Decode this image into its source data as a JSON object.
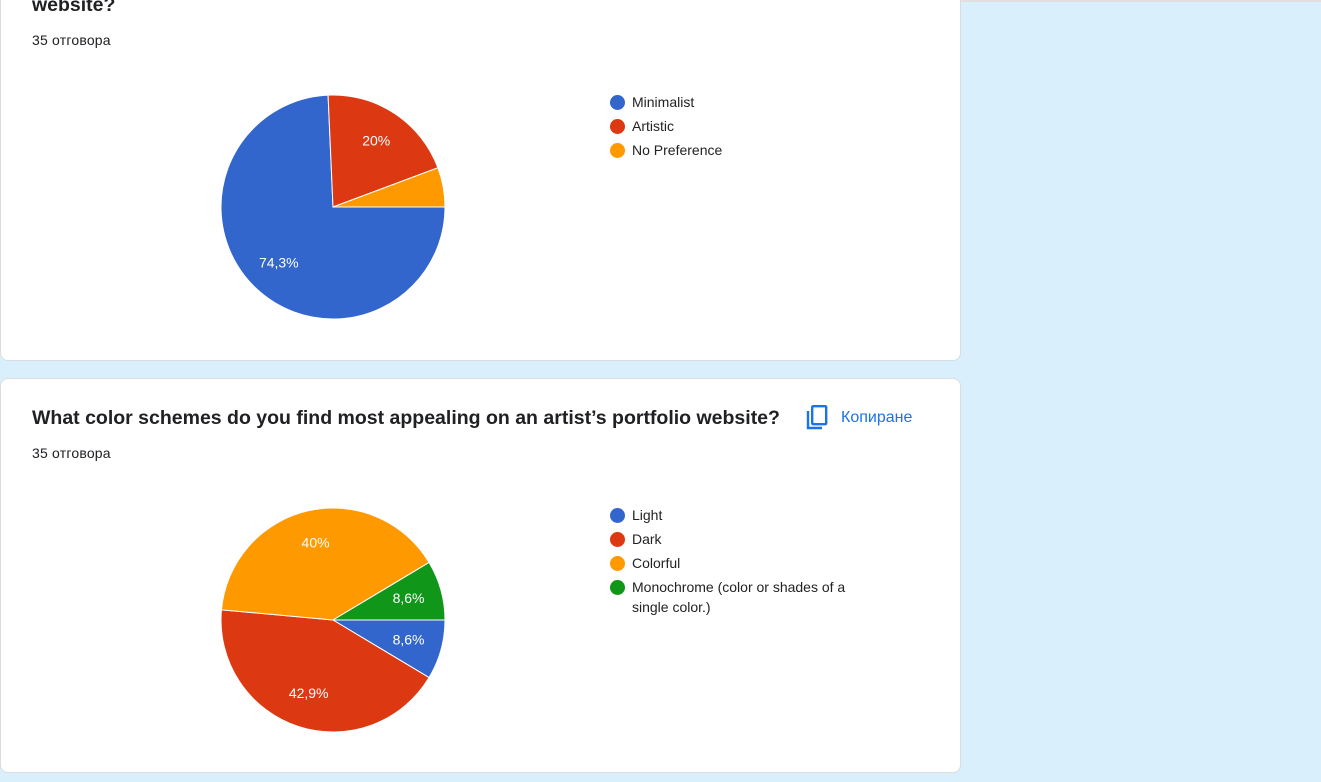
{
  "cards": [
    {
      "title": "website?",
      "responses": "35 отговора",
      "chart_data": {
        "type": "pie",
        "categories": [
          "Minimalist",
          "Artistic",
          "No Preference"
        ],
        "values": [
          74.3,
          20,
          5.7
        ],
        "value_labels": [
          "74,3%",
          "20%",
          null
        ],
        "colors": [
          "#3366cc",
          "#dc3912",
          "#ff9900"
        ]
      }
    },
    {
      "title": "What color schemes do you find most appealing on an artist’s portfolio website?",
      "responses": "35 отговора",
      "copy_button": "Копиране",
      "chart_data": {
        "type": "pie",
        "categories": [
          "Light",
          "Dark",
          "Colorful",
          "Monochrome (color or shades of a single color.)"
        ],
        "values": [
          8.6,
          42.9,
          40,
          8.6
        ],
        "value_labels": [
          "8,6%",
          "42,9%",
          "40%",
          "8,6%"
        ],
        "colors": [
          "#3366cc",
          "#dc3912",
          "#ff9900",
          "#109618"
        ]
      }
    }
  ]
}
